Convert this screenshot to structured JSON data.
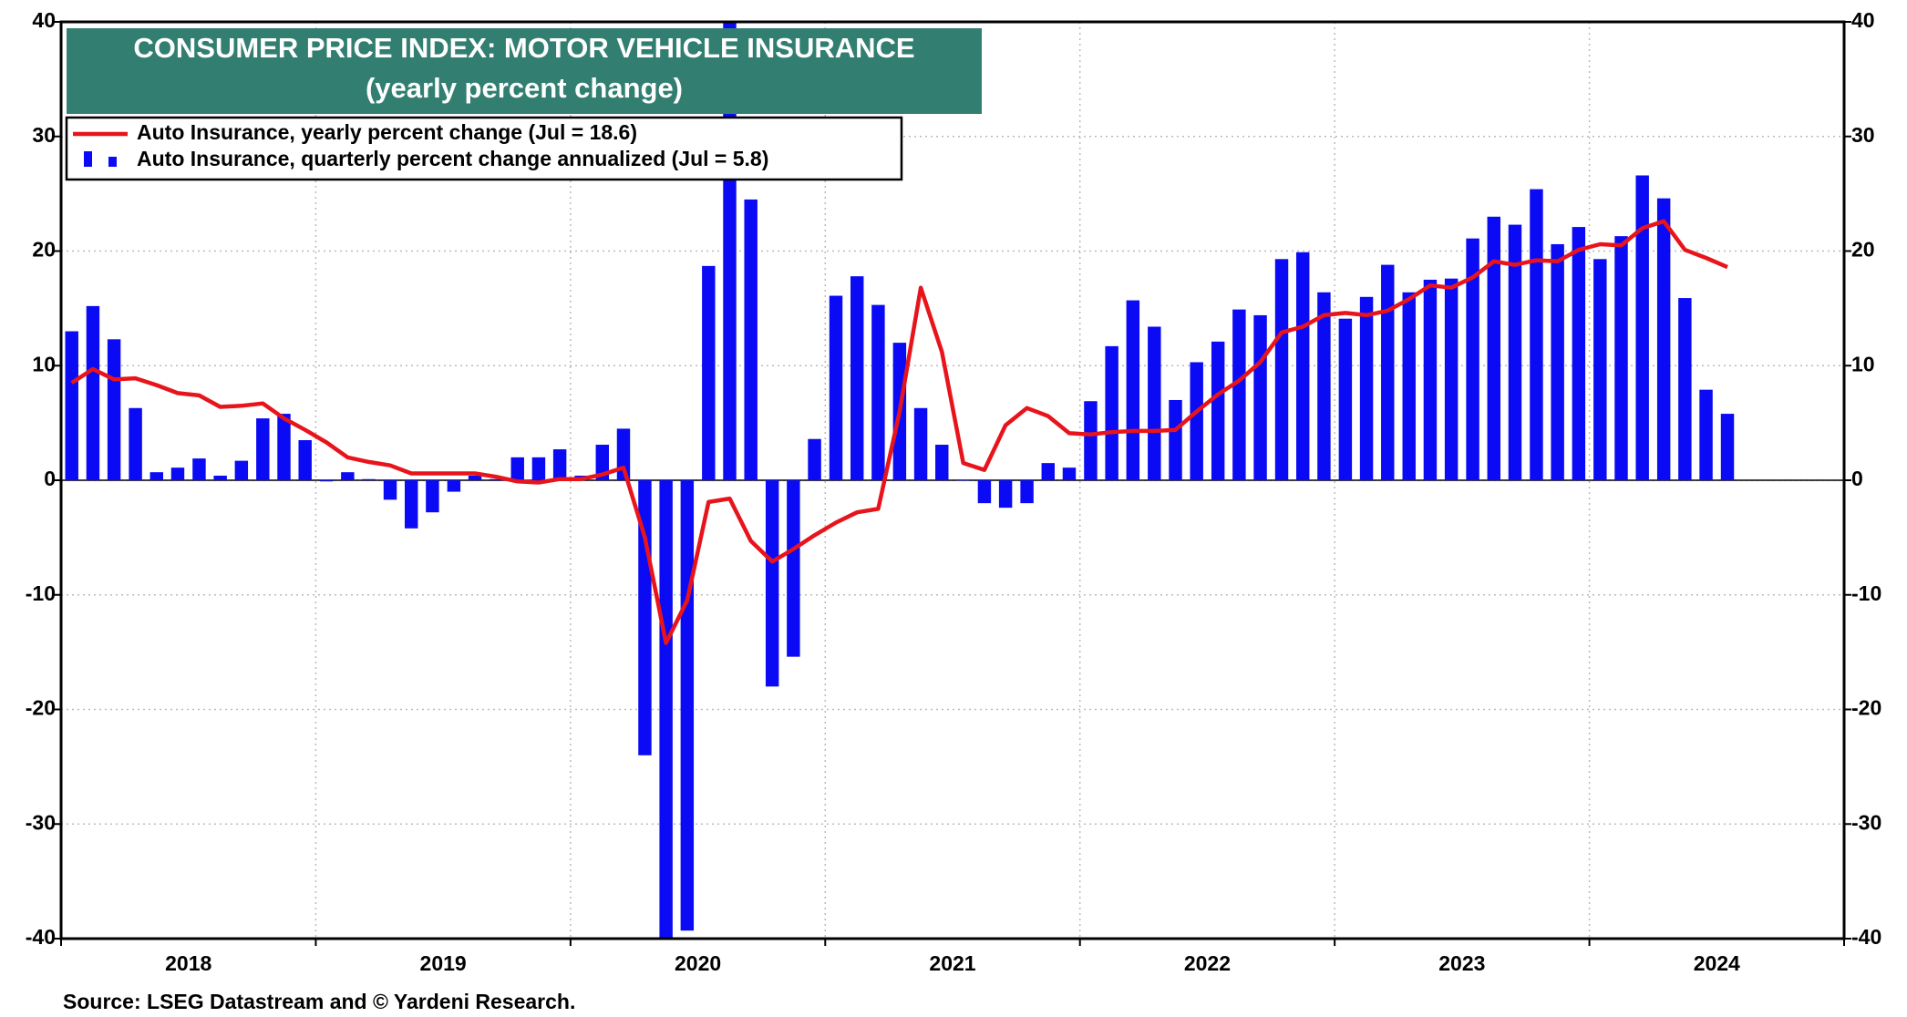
{
  "chart_data": {
    "type": "bar_line",
    "title": "CONSUMER PRICE INDEX: MOTOR VEHICLE INSURANCE",
    "subtitle": "(yearly percent change)",
    "source": "Source: LSEG Datastream and © Yardeni Research.",
    "years": [
      "2018",
      "2019",
      "2020",
      "2021",
      "2022",
      "2023",
      "2024"
    ],
    "xlim": [
      2018,
      2025
    ],
    "xticks": [
      2018,
      2019,
      2020,
      2021,
      2022,
      2023,
      2024,
      2025
    ],
    "ylim": [
      -40,
      40
    ],
    "yticks": [
      -40,
      -30,
      -20,
      -10,
      0,
      10,
      20,
      30,
      40
    ],
    "y2lim": [
      -40,
      40
    ],
    "y2ticks": [
      -40,
      -30,
      -20,
      -10,
      0,
      10,
      20,
      30,
      40
    ],
    "grid": true,
    "legend": "upper left",
    "x": [
      2018.042,
      2018.125,
      2018.208,
      2018.292,
      2018.375,
      2018.458,
      2018.542,
      2018.625,
      2018.708,
      2018.792,
      2018.875,
      2018.958,
      2019.042,
      2019.125,
      2019.208,
      2019.292,
      2019.375,
      2019.458,
      2019.542,
      2019.625,
      2019.708,
      2019.792,
      2019.875,
      2019.958,
      2020.042,
      2020.125,
      2020.208,
      2020.292,
      2020.375,
      2020.458,
      2020.542,
      2020.625,
      2020.708,
      2020.792,
      2020.875,
      2020.958,
      2021.042,
      2021.125,
      2021.208,
      2021.292,
      2021.375,
      2021.458,
      2021.542,
      2021.625,
      2021.708,
      2021.792,
      2021.875,
      2021.958,
      2022.042,
      2022.125,
      2022.208,
      2022.292,
      2022.375,
      2022.458,
      2022.542,
      2022.625,
      2022.708,
      2022.792,
      2022.875,
      2022.958,
      2023.042,
      2023.125,
      2023.208,
      2023.292,
      2023.375,
      2023.458,
      2023.542,
      2023.625,
      2023.708,
      2023.792,
      2023.875,
      2023.958,
      2024.042,
      2024.125,
      2024.208,
      2024.292,
      2024.375,
      2024.458,
      2024.542
    ],
    "series": [
      {
        "name": "Auto Insurance, yearly percent change (Jul = 18.6)",
        "type": "line",
        "color": "#e8141c",
        "values": [
          8.5,
          9.7,
          8.8,
          8.9,
          8.3,
          7.6,
          7.4,
          6.4,
          6.5,
          6.7,
          5.4,
          4.4,
          3.3,
          2.0,
          1.6,
          1.3,
          0.6,
          0.6,
          0.6,
          0.6,
          0.3,
          -0.1,
          -0.2,
          0.1,
          0.1,
          0.5,
          1.1,
          -5.0,
          -14.2,
          -10.5,
          -1.9,
          -1.6,
          -5.3,
          -7.1,
          -6.0,
          -4.8,
          -3.7,
          -2.8,
          -2.5,
          6.0,
          16.8,
          11.2,
          1.5,
          0.9,
          4.8,
          6.3,
          5.6,
          4.1,
          4.0,
          4.2,
          4.3,
          4.3,
          4.4,
          6.0,
          7.5,
          8.7,
          10.3,
          12.9,
          13.4,
          14.4,
          14.6,
          14.4,
          14.8,
          15.8,
          17.0,
          16.8,
          17.7,
          19.1,
          18.8,
          19.2,
          19.1,
          20.1,
          20.6,
          20.5,
          22.0,
          22.6,
          20.1,
          19.4,
          18.6
        ]
      },
      {
        "name": "Auto Insurance, quarterly percent change annualized (Jul = 5.8)",
        "type": "bar",
        "color": "#0a0af5",
        "values": [
          13.0,
          15.2,
          12.3,
          6.3,
          0.7,
          1.1,
          1.9,
          0.4,
          1.7,
          5.4,
          5.8,
          3.5,
          -0.1,
          0.7,
          0.1,
          -1.7,
          -4.2,
          -2.8,
          -1.0,
          0.4,
          0.1,
          2.0,
          2.0,
          2.7,
          0.4,
          3.1,
          4.5,
          -24.0,
          -42.0,
          -39.3,
          18.7,
          42.0,
          24.5,
          -18.0,
          -15.4,
          3.6,
          16.1,
          17.8,
          15.3,
          12.0,
          6.3,
          3.1,
          0.0,
          -2.0,
          -2.4,
          -2.0,
          1.5,
          1.1,
          6.9,
          11.7,
          15.7,
          13.4,
          7.0,
          10.3,
          12.1,
          14.9,
          14.4,
          19.3,
          19.9,
          16.4,
          14.1,
          16.0,
          18.8,
          16.4,
          17.5,
          17.6,
          21.1,
          23.0,
          22.3,
          25.4,
          20.6,
          22.1,
          19.3,
          21.3,
          26.6,
          24.6,
          15.9,
          7.9,
          5.8
        ]
      }
    ]
  }
}
